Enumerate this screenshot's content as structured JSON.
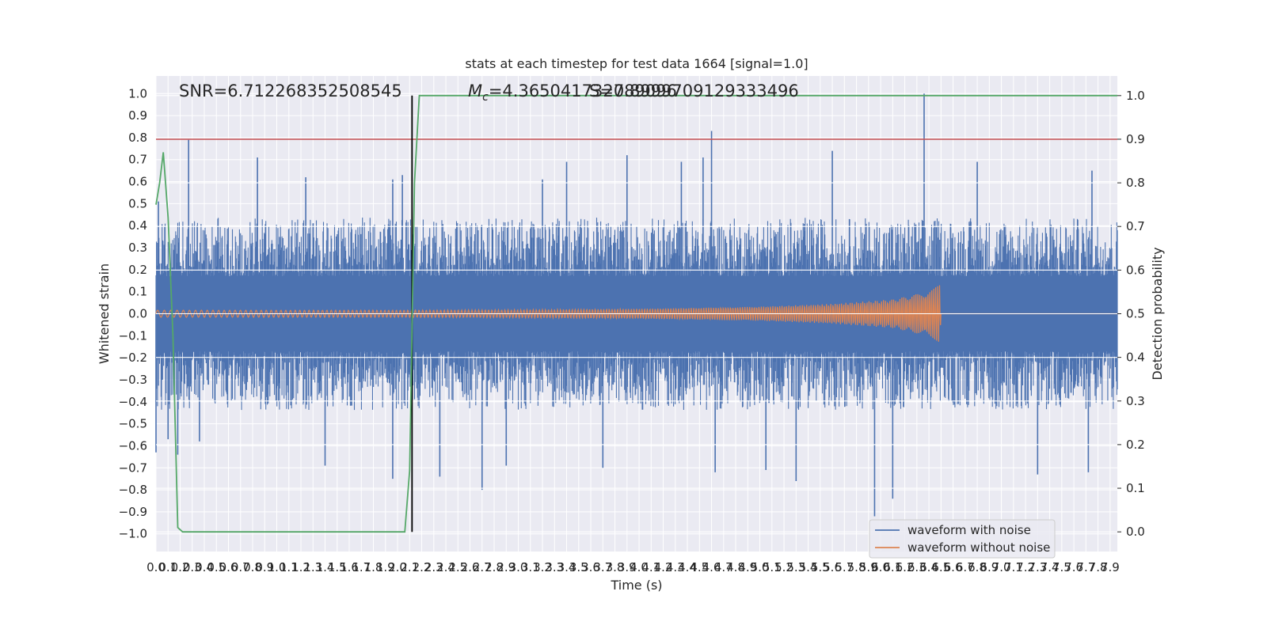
{
  "chart_data": {
    "type": "line",
    "title": "stats at each timestep for test data 1664 [signal=1.0]",
    "xlabel": "Time (s)",
    "ylabel": "Whitened strain",
    "y2label": "Detection probability",
    "xlim": [
      0.0,
      7.96
    ],
    "ylim": [
      -1.08,
      1.08
    ],
    "y2lim": [
      -0.045,
      1.045
    ],
    "xticks": [
      0.0,
      0.1,
      0.2,
      0.3,
      0.4,
      0.5,
      0.6,
      0.7,
      0.8,
      0.9,
      1.0,
      1.1,
      1.2,
      1.3,
      1.4,
      1.5,
      1.6,
      1.7,
      1.8,
      1.9,
      2.0,
      2.1,
      2.2,
      2.3,
      2.4,
      2.5,
      2.6,
      2.7,
      2.8,
      2.9,
      3.0,
      3.1,
      3.2,
      3.3,
      3.4,
      3.5,
      3.6,
      3.7,
      3.8,
      3.9,
      4.0,
      4.1,
      4.2,
      4.3,
      4.4,
      4.5,
      4.6,
      4.7,
      4.8,
      4.9,
      5.0,
      5.1,
      5.2,
      5.3,
      5.4,
      5.5,
      5.6,
      5.7,
      5.8,
      5.9,
      6.0,
      6.1,
      6.2,
      6.3,
      6.4,
      6.5,
      6.6,
      6.7,
      6.8,
      6.9,
      7.0,
      7.1,
      7.2,
      7.3,
      7.4,
      7.5,
      7.6,
      7.7,
      7.8,
      7.9
    ],
    "yticks": [
      -1.0,
      -0.9,
      -0.8,
      -0.7,
      -0.6,
      -0.5,
      -0.4,
      -0.3,
      -0.2,
      -0.1,
      0.0,
      0.1,
      0.2,
      0.3,
      0.4,
      0.5,
      0.6,
      0.7,
      0.8,
      0.9,
      1.0
    ],
    "y2ticks": [
      0.0,
      0.1,
      0.2,
      0.3,
      0.4,
      0.5,
      0.6,
      0.7,
      0.8,
      0.9,
      1.0
    ],
    "grid": true,
    "legend_position": "lower-right",
    "annotations": {
      "snr": "SNR=6.712268352508545",
      "mc_prefix": "M",
      "mc_sub": "c",
      "mc_value": "=4.365041732789096",
      "overlap": "S=0.8999709129333496"
    },
    "threshold": {
      "value": 0.9,
      "axis": "y2",
      "color": "#c44e52"
    },
    "event_marker": {
      "x": 2.12,
      "y_from": 0.0,
      "y_to": 1.0,
      "axis": "y2",
      "color": "#000000"
    },
    "noise_envelope": {
      "upper": 0.38,
      "lower": -0.38,
      "seed": 1664,
      "spikes": [
        {
          "x": 0.0,
          "y": -0.63
        },
        {
          "x": 0.02,
          "y": 0.51
        },
        {
          "x": 0.1,
          "y": -0.57
        },
        {
          "x": 0.18,
          "y": -0.64
        },
        {
          "x": 0.27,
          "y": 0.79
        },
        {
          "x": 0.36,
          "y": -0.58
        },
        {
          "x": 0.84,
          "y": 0.71
        },
        {
          "x": 1.24,
          "y": 0.62
        },
        {
          "x": 1.4,
          "y": -0.69
        },
        {
          "x": 1.96,
          "y": 0.61
        },
        {
          "x": 1.96,
          "y": -0.75
        },
        {
          "x": 2.04,
          "y": 0.63
        },
        {
          "x": 2.35,
          "y": -0.74
        },
        {
          "x": 2.7,
          "y": -0.8
        },
        {
          "x": 2.9,
          "y": -0.69
        },
        {
          "x": 3.2,
          "y": 0.61
        },
        {
          "x": 3.4,
          "y": 0.69
        },
        {
          "x": 3.7,
          "y": -0.7
        },
        {
          "x": 3.9,
          "y": 0.72
        },
        {
          "x": 4.35,
          "y": 0.69
        },
        {
          "x": 4.53,
          "y": 0.71
        },
        {
          "x": 4.6,
          "y": 0.83
        },
        {
          "x": 4.63,
          "y": -0.72
        },
        {
          "x": 5.05,
          "y": -0.71
        },
        {
          "x": 5.3,
          "y": -0.76
        },
        {
          "x": 5.6,
          "y": 0.74
        },
        {
          "x": 5.95,
          "y": -0.92
        },
        {
          "x": 6.1,
          "y": -0.84
        },
        {
          "x": 6.36,
          "y": 1.0
        },
        {
          "x": 6.8,
          "y": 0.69
        },
        {
          "x": 7.3,
          "y": -0.73
        },
        {
          "x": 7.75,
          "y": 0.65
        },
        {
          "x": 7.72,
          "y": -0.72
        }
      ]
    },
    "series": [
      {
        "name": "waveform with noise",
        "color": "#4c72b0",
        "axis": "y"
      },
      {
        "name": "waveform without noise",
        "color": "#dd8452",
        "axis": "y",
        "envelope": [
          {
            "x": 0.0,
            "a": 0.016
          },
          {
            "x": 2.0,
            "a": 0.016
          },
          {
            "x": 3.0,
            "a": 0.018
          },
          {
            "x": 4.0,
            "a": 0.022
          },
          {
            "x": 5.0,
            "a": 0.032
          },
          {
            "x": 5.6,
            "a": 0.045
          },
          {
            "x": 6.1,
            "a": 0.065
          },
          {
            "x": 6.35,
            "a": 0.095
          },
          {
            "x": 6.49,
            "a": 0.13
          },
          {
            "x": 6.5,
            "a": 0.0
          },
          {
            "x": 7.96,
            "a": 0.0
          }
        ],
        "end_x": 6.5
      },
      {
        "name": "detection probability",
        "color": "#55a868",
        "axis": "y2",
        "points": [
          {
            "x": 0.0,
            "y": 0.75
          },
          {
            "x": 0.03,
            "y": 0.8
          },
          {
            "x": 0.06,
            "y": 0.87
          },
          {
            "x": 0.1,
            "y": 0.72
          },
          {
            "x": 0.14,
            "y": 0.45
          },
          {
            "x": 0.18,
            "y": 0.01
          },
          {
            "x": 0.22,
            "y": 0.0
          },
          {
            "x": 2.06,
            "y": 0.0
          },
          {
            "x": 2.1,
            "y": 0.14
          },
          {
            "x": 2.14,
            "y": 0.8
          },
          {
            "x": 2.18,
            "y": 1.0
          },
          {
            "x": 2.26,
            "y": 1.0
          },
          {
            "x": 7.96,
            "y": 1.0
          }
        ]
      }
    ]
  }
}
